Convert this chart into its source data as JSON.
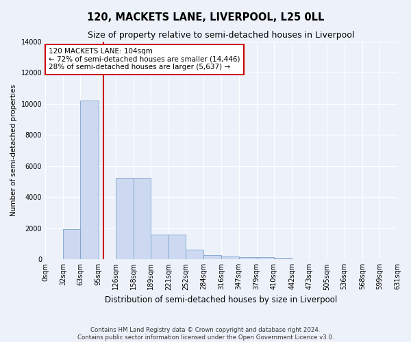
{
  "title": "120, MACKETS LANE, LIVERPOOL, L25 0LL",
  "subtitle": "Size of property relative to semi-detached houses in Liverpool",
  "xlabel": "Distribution of semi-detached houses by size in Liverpool",
  "ylabel": "Number of semi-detached properties",
  "bar_edges": [
    0,
    32,
    63,
    95,
    126,
    158,
    189,
    221,
    252,
    284,
    316,
    347,
    379,
    410,
    442,
    473,
    505,
    536,
    568,
    599,
    631
  ],
  "bar_heights": [
    0,
    1950,
    10200,
    0,
    5250,
    5250,
    1580,
    1580,
    630,
    280,
    175,
    130,
    130,
    95,
    0,
    0,
    0,
    0,
    0,
    0
  ],
  "bar_color": "#ccd9f0",
  "bar_edgecolor": "#7aa0cc",
  "property_value": 104,
  "vline_color": "#cc0000",
  "annotation_text": "120 MACKETS LANE: 104sqm\n← 72% of semi-detached houses are smaller (14,446)\n28% of semi-detached houses are larger (5,637) →",
  "annotation_box_edgecolor": "#cc0000",
  "ylim": [
    0,
    14000
  ],
  "yticks": [
    0,
    2000,
    4000,
    6000,
    8000,
    10000,
    12000,
    14000
  ],
  "footer_line1": "Contains HM Land Registry data © Crown copyright and database right 2024.",
  "footer_line2": "Contains public sector information licensed under the Open Government Licence v3.0.",
  "bg_color": "#edf2fa",
  "axes_bg_color": "#edf2fa",
  "grid_color": "#ffffff",
  "title_fontsize": 10.5,
  "subtitle_fontsize": 9,
  "tick_label_fontsize": 7,
  "ylabel_fontsize": 7.5,
  "xlabel_fontsize": 8.5
}
